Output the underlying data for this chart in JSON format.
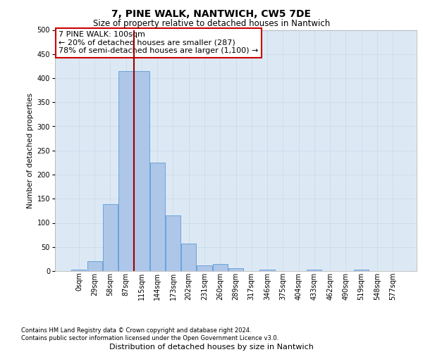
{
  "title": "7, PINE WALK, NANTWICH, CW5 7DE",
  "subtitle": "Size of property relative to detached houses in Nantwich",
  "xlabel": "Distribution of detached houses by size in Nantwich",
  "ylabel": "Number of detached properties",
  "bar_labels": [
    "0sqm",
    "29sqm",
    "58sqm",
    "87sqm",
    "115sqm",
    "144sqm",
    "173sqm",
    "202sqm",
    "231sqm",
    "260sqm",
    "289sqm",
    "317sqm",
    "346sqm",
    "375sqm",
    "404sqm",
    "433sqm",
    "462sqm",
    "490sqm",
    "519sqm",
    "548sqm",
    "577sqm"
  ],
  "bar_values": [
    3,
    20,
    138,
    415,
    415,
    225,
    115,
    57,
    12,
    15,
    6,
    0,
    3,
    0,
    0,
    3,
    0,
    0,
    3,
    0,
    0
  ],
  "bar_color": "#aec6e8",
  "bar_edge_color": "#5b9bd5",
  "vline_x_index": 3.5,
  "vline_color": "#990000",
  "annotation_text": "7 PINE WALK: 100sqm\n← 20% of detached houses are smaller (287)\n78% of semi-detached houses are larger (1,100) →",
  "annotation_box_facecolor": "#ffffff",
  "annotation_box_edgecolor": "#cc0000",
  "ylim": [
    0,
    500
  ],
  "yticks": [
    0,
    50,
    100,
    150,
    200,
    250,
    300,
    350,
    400,
    450,
    500
  ],
  "grid_color": "#c8d8e8",
  "plot_bg_color": "#dce9f5",
  "title_fontsize": 10,
  "subtitle_fontsize": 8.5,
  "ylabel_fontsize": 7.5,
  "xlabel_fontsize": 8,
  "tick_fontsize": 7,
  "annot_fontsize": 8,
  "footer_fontsize": 6,
  "footer_line1": "Contains HM Land Registry data © Crown copyright and database right 2024.",
  "footer_line2": "Contains public sector information licensed under the Open Government Licence v3.0."
}
